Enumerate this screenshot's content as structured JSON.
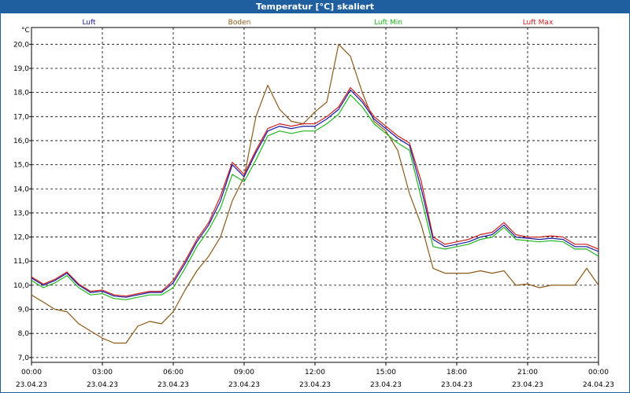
{
  "window": {
    "title": "Temperatur [°C] skaliert"
  },
  "chart_data": {
    "type": "line",
    "title": "Temperatur [°C] skaliert",
    "ylabel": "°C",
    "xlabel": "",
    "ylim": [
      6.8,
      20.5
    ],
    "yticks": [
      "7,0",
      "8,0",
      "9,0",
      "10,0",
      "11,0",
      "12,0",
      "13,0",
      "14,0",
      "15,0",
      "16,0",
      "17,0",
      "18,0",
      "19,0",
      "20,0"
    ],
    "xlim": [
      0,
      24
    ],
    "xticks": [
      {
        "time": "00:00",
        "date": "23.04.23"
      },
      {
        "time": "03:00",
        "date": "23.04.23"
      },
      {
        "time": "06:00",
        "date": "23.04.23"
      },
      {
        "time": "09:00",
        "date": "23.04.23"
      },
      {
        "time": "12:00",
        "date": "23.04.23"
      },
      {
        "time": "15:00",
        "date": "23.04.23"
      },
      {
        "time": "18:00",
        "date": "23.04.23"
      },
      {
        "time": "21:00",
        "date": "23.04.23"
      },
      {
        "time": "00:00",
        "date": "24.04.23"
      }
    ],
    "grid": true,
    "legend_position": "top",
    "x_unit": "hours",
    "series": [
      {
        "name": "Luft",
        "color": "#1a1aa0",
        "x": [
          0,
          0.5,
          1,
          1.5,
          2,
          2.5,
          3,
          3.5,
          4,
          4.5,
          5,
          5.5,
          6,
          6.5,
          7,
          7.5,
          8,
          8.5,
          9,
          9.5,
          10,
          10.5,
          11,
          11.5,
          12,
          12.5,
          13,
          13.5,
          14,
          14.5,
          15,
          15.5,
          16,
          16.5,
          17,
          17.5,
          18,
          18.5,
          19,
          19.5,
          20,
          20.5,
          21,
          21.5,
          22,
          22.5,
          23,
          23.5,
          24
        ],
        "y": [
          10.3,
          10.0,
          10.2,
          10.5,
          10.0,
          9.7,
          9.75,
          9.55,
          9.5,
          9.6,
          9.7,
          9.7,
          10.1,
          10.9,
          11.8,
          12.5,
          13.5,
          15.0,
          14.5,
          15.5,
          16.4,
          16.6,
          16.5,
          16.6,
          16.6,
          16.9,
          17.3,
          18.1,
          17.6,
          16.9,
          16.5,
          16.1,
          15.8,
          14.0,
          11.9,
          11.6,
          11.7,
          11.8,
          12.0,
          12.1,
          12.5,
          12.0,
          11.95,
          11.9,
          11.95,
          11.9,
          11.6,
          11.6,
          11.4
        ]
      },
      {
        "name": "Boden",
        "color": "#8b5a1a",
        "x": [
          0,
          0.5,
          1,
          1.5,
          2,
          2.5,
          3,
          3.5,
          4,
          4.5,
          5,
          5.5,
          6,
          6.5,
          7,
          7.5,
          8,
          8.5,
          9,
          9.5,
          10,
          10.5,
          11,
          11.5,
          12,
          12.5,
          13,
          13.5,
          14,
          14.5,
          15,
          15.5,
          16,
          16.5,
          17,
          17.5,
          18,
          18.5,
          19,
          19.5,
          20,
          20.5,
          21,
          21.5,
          22,
          22.5,
          23,
          23.5,
          24
        ],
        "y": [
          9.6,
          9.3,
          9.0,
          8.9,
          8.4,
          8.1,
          7.8,
          7.6,
          7.6,
          8.3,
          8.5,
          8.4,
          8.9,
          9.8,
          10.6,
          11.2,
          12.0,
          13.5,
          14.5,
          17.0,
          18.3,
          17.3,
          16.8,
          16.7,
          17.2,
          17.6,
          20.0,
          19.5,
          18.0,
          16.8,
          16.4,
          15.6,
          13.8,
          12.5,
          10.7,
          10.5,
          10.5,
          10.5,
          10.6,
          10.5,
          10.6,
          10.0,
          10.05,
          9.9,
          10.0,
          10.0,
          10.0,
          10.7,
          10.0
        ]
      },
      {
        "name": "Luft Min",
        "color": "#1fb51f",
        "x": [
          0,
          0.5,
          1,
          1.5,
          2,
          2.5,
          3,
          3.5,
          4,
          4.5,
          5,
          5.5,
          6,
          6.5,
          7,
          7.5,
          8,
          8.5,
          9,
          9.5,
          10,
          10.5,
          11,
          11.5,
          12,
          12.5,
          13,
          13.5,
          14,
          14.5,
          15,
          15.5,
          16,
          16.5,
          17,
          17.5,
          18,
          18.5,
          19,
          19.5,
          20,
          20.5,
          21,
          21.5,
          22,
          22.5,
          23,
          23.5,
          24
        ],
        "y": [
          10.2,
          9.9,
          10.1,
          10.4,
          9.9,
          9.6,
          9.65,
          9.45,
          9.4,
          9.5,
          9.6,
          9.6,
          9.9,
          10.7,
          11.6,
          12.3,
          13.2,
          14.6,
          14.3,
          15.2,
          16.2,
          16.4,
          16.3,
          16.4,
          16.4,
          16.7,
          17.1,
          17.9,
          17.4,
          16.7,
          16.3,
          15.9,
          15.6,
          13.6,
          11.6,
          11.5,
          11.6,
          11.7,
          11.9,
          12.0,
          12.4,
          11.9,
          11.85,
          11.8,
          11.85,
          11.8,
          11.5,
          11.5,
          11.2
        ]
      },
      {
        "name": "Luft Max",
        "color": "#cc1f1f",
        "x": [
          0,
          0.5,
          1,
          1.5,
          2,
          2.5,
          3,
          3.5,
          4,
          4.5,
          5,
          5.5,
          6,
          6.5,
          7,
          7.5,
          8,
          8.5,
          9,
          9.5,
          10,
          10.5,
          11,
          11.5,
          12,
          12.5,
          13,
          13.5,
          14,
          14.5,
          15,
          15.5,
          16,
          16.5,
          17,
          17.5,
          18,
          18.5,
          19,
          19.5,
          20,
          20.5,
          21,
          21.5,
          22,
          22.5,
          23,
          23.5,
          24
        ],
        "y": [
          10.35,
          10.05,
          10.25,
          10.55,
          10.05,
          9.75,
          9.8,
          9.6,
          9.55,
          9.65,
          9.75,
          9.75,
          10.2,
          11.0,
          11.9,
          12.6,
          13.7,
          15.1,
          14.6,
          15.6,
          16.5,
          16.7,
          16.6,
          16.7,
          16.7,
          17.0,
          17.4,
          18.2,
          17.7,
          17.0,
          16.6,
          16.2,
          15.9,
          14.3,
          12.0,
          11.7,
          11.8,
          11.9,
          12.1,
          12.2,
          12.6,
          12.1,
          12.0,
          12.0,
          12.05,
          12.0,
          11.7,
          11.7,
          11.5
        ]
      }
    ]
  }
}
